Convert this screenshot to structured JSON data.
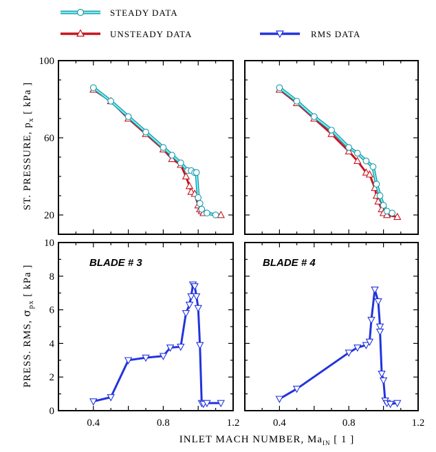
{
  "legend": {
    "steady": "STEADY DATA",
    "unsteady": "UNSTEADY DATA",
    "rms": "RMS DATA"
  },
  "colors": {
    "steady": "#33e0e6",
    "unsteady": "#c8141e",
    "rms": "#2233dd"
  },
  "labels": {
    "ylabel_top_main": "ST. PRESSURE,  p",
    "ylabel_top_sub": "x",
    "ylabel_top_unit": "  [ kPa ]",
    "ylabel_bottom_main": "PRESS. RMS,  ",
    "ylabel_bottom_sigma": "σ",
    "ylabel_bottom_sub": "px",
    "ylabel_bottom_unit": "  [ kPa ]",
    "xlabel_main": "INLET MACH NUMBER,     Ma",
    "xlabel_sub": "IN",
    "xlabel_unit": "   [ 1 ]",
    "blade3": "BLADE  # 3",
    "blade4": "BLADE  # 4"
  },
  "chart_data": [
    {
      "type": "line",
      "panel": "top-left",
      "xlim": [
        0.2,
        1.2
      ],
      "ylim": [
        10,
        100
      ],
      "xticks": [
        0.4,
        0.8,
        1.2
      ],
      "yticks": [
        20,
        60,
        100
      ],
      "series": [
        {
          "key": "unsteady",
          "marker": "triangle-up",
          "x": [
            0.4,
            0.5,
            0.6,
            0.7,
            0.8,
            0.85,
            0.9,
            0.93,
            0.95,
            0.96,
            0.98,
            1.0,
            1.01,
            1.02,
            1.03,
            1.13
          ],
          "y": [
            85,
            79,
            70,
            62,
            54,
            49,
            46,
            40,
            35,
            32,
            31,
            25,
            23,
            22,
            21,
            20
          ]
        },
        {
          "key": "steady",
          "marker": "circle",
          "x": [
            0.4,
            0.5,
            0.6,
            0.7,
            0.8,
            0.85,
            0.9,
            0.94,
            0.96,
            0.98,
            0.99,
            1.0,
            1.01,
            1.02,
            1.05,
            1.1
          ],
          "y": [
            86,
            79,
            71,
            63,
            55,
            51,
            47,
            43,
            43,
            42,
            42,
            29,
            26,
            23,
            21,
            20
          ]
        }
      ]
    },
    {
      "type": "line",
      "panel": "top-right",
      "xlim": [
        0.2,
        1.2
      ],
      "ylim": [
        10,
        100
      ],
      "xticks": [
        0.4,
        0.8,
        1.2
      ],
      "yticks": [
        20,
        60,
        100
      ],
      "series": [
        {
          "key": "unsteady",
          "marker": "triangle-up",
          "x": [
            0.4,
            0.5,
            0.6,
            0.7,
            0.8,
            0.85,
            0.9,
            0.92,
            0.95,
            0.96,
            0.97,
            0.99,
            1.0,
            1.02,
            1.08
          ],
          "y": [
            85,
            78,
            70,
            62,
            53,
            48,
            42,
            41,
            34,
            30,
            27,
            23,
            21,
            20,
            19
          ]
        },
        {
          "key": "steady",
          "marker": "circle",
          "x": [
            0.4,
            0.5,
            0.6,
            0.7,
            0.8,
            0.85,
            0.9,
            0.94,
            0.96,
            0.98,
            1.0,
            1.02,
            1.05
          ],
          "y": [
            86,
            79,
            71,
            64,
            55,
            52,
            48,
            45,
            36,
            30,
            25,
            22,
            21
          ]
        }
      ]
    },
    {
      "type": "line",
      "panel": "bottom-left",
      "xlim": [
        0.2,
        1.2
      ],
      "ylim": [
        0,
        10
      ],
      "xticks": [
        0.4,
        0.8,
        1.2
      ],
      "yticks": [
        0,
        2,
        4,
        6,
        8,
        10
      ],
      "series": [
        {
          "key": "rms",
          "marker": "triangle-down",
          "x": [
            0.4,
            0.5,
            0.6,
            0.7,
            0.8,
            0.84,
            0.9,
            0.93,
            0.95,
            0.96,
            0.97,
            0.98,
            0.99,
            1.0,
            1.01,
            1.02,
            1.03,
            1.05,
            1.13
          ],
          "y": [
            0.55,
            0.8,
            3.0,
            3.15,
            3.25,
            3.75,
            3.8,
            5.8,
            6.3,
            6.8,
            7.5,
            7.4,
            6.8,
            6.1,
            3.9,
            0.45,
            0.4,
            0.45,
            0.45
          ]
        }
      ]
    },
    {
      "type": "line",
      "panel": "bottom-right",
      "xlim": [
        0.2,
        1.2
      ],
      "ylim": [
        0,
        10
      ],
      "xticks": [
        0.4,
        0.8,
        1.2
      ],
      "yticks": [
        0,
        2,
        4,
        6,
        8,
        10
      ],
      "series": [
        {
          "key": "rms",
          "marker": "triangle-down",
          "x": [
            0.4,
            0.5,
            0.8,
            0.85,
            0.9,
            0.92,
            0.93,
            0.95,
            0.97,
            0.98,
            0.98,
            0.99,
            1.0,
            1.01,
            1.02,
            1.04,
            1.08
          ],
          "y": [
            0.7,
            1.3,
            3.45,
            3.75,
            3.9,
            4.1,
            5.4,
            7.2,
            6.5,
            5.0,
            4.7,
            2.2,
            1.8,
            0.6,
            0.45,
            0.4,
            0.45
          ]
        }
      ]
    }
  ]
}
